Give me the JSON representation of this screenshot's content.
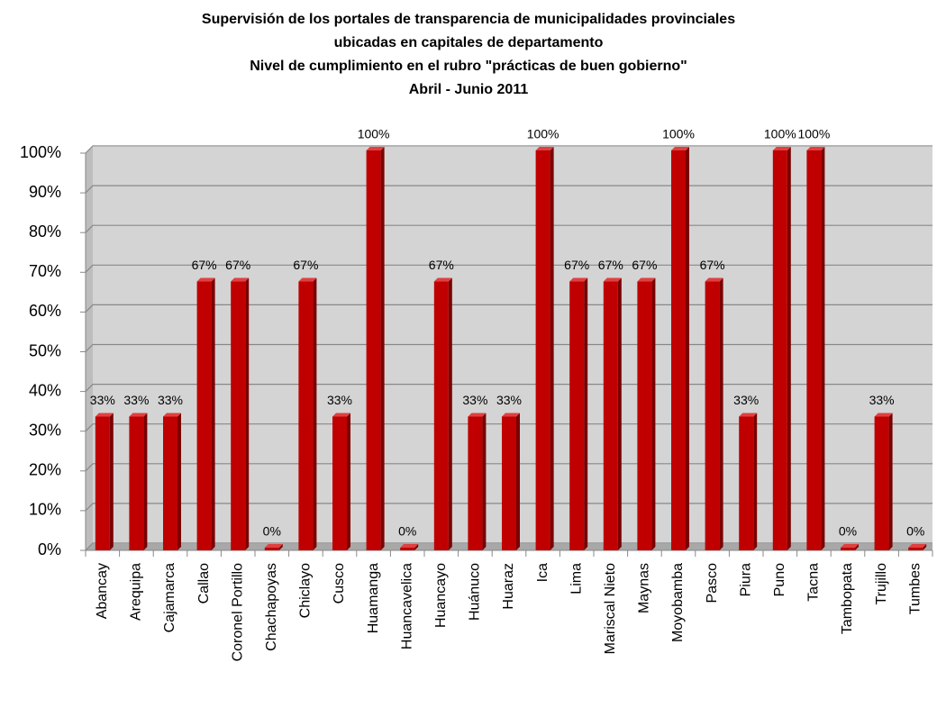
{
  "chart_data": {
    "type": "bar",
    "title": [
      "Supervisión de los portales de transparencia de municipalidades provinciales",
      "ubicadas en capitales de departamento",
      "Nivel de cumplimiento en el rubro  \"prácticas de buen gobierno\"",
      "Abril - Junio 2011"
    ],
    "categories": [
      "Abancay",
      "Arequipa",
      "Cajamarca",
      "Callao",
      "Coronel Portillo",
      "Chachapoyas",
      "Chiclayo",
      "Cusco",
      "Huamanga",
      "Huancavelica",
      "Huancayo",
      "Huánuco",
      "Huaraz",
      "Ica",
      "Lima",
      "Mariscal Nieto",
      "Maynas",
      "Moyobamba",
      "Pasco",
      "Piura",
      "Puno",
      "Tacna",
      "Tambopata",
      "Trujillo",
      "Tumbes"
    ],
    "values": [
      33,
      33,
      33,
      67,
      67,
      0,
      67,
      33,
      100,
      0,
      67,
      33,
      33,
      100,
      67,
      67,
      67,
      100,
      67,
      33,
      100,
      100,
      0,
      33,
      0
    ],
    "value_labels": [
      "33%",
      "33%",
      "33%",
      "67%",
      "67%",
      "0%",
      "67%",
      "33%",
      "100%",
      "0%",
      "67%",
      "33%",
      "33%",
      "100%",
      "67%",
      "67%",
      "67%",
      "100%",
      "67%",
      "33%",
      "100%",
      "100%",
      "0%",
      "33%",
      "0%"
    ],
    "color": "#c00000",
    "ylim": [
      0,
      100
    ],
    "yticks": [
      {
        "value": 0,
        "label": "0%"
      },
      {
        "value": 10,
        "label": "10%"
      },
      {
        "value": 20,
        "label": "20%"
      },
      {
        "value": 30,
        "label": "30%"
      },
      {
        "value": 40,
        "label": "40%"
      },
      {
        "value": 50,
        "label": "50%"
      },
      {
        "value": 60,
        "label": "60%"
      },
      {
        "value": 70,
        "label": "70%"
      },
      {
        "value": 80,
        "label": "80%"
      },
      {
        "value": 90,
        "label": "90%"
      },
      {
        "value": 100,
        "label": "100%"
      }
    ],
    "grid": true
  }
}
